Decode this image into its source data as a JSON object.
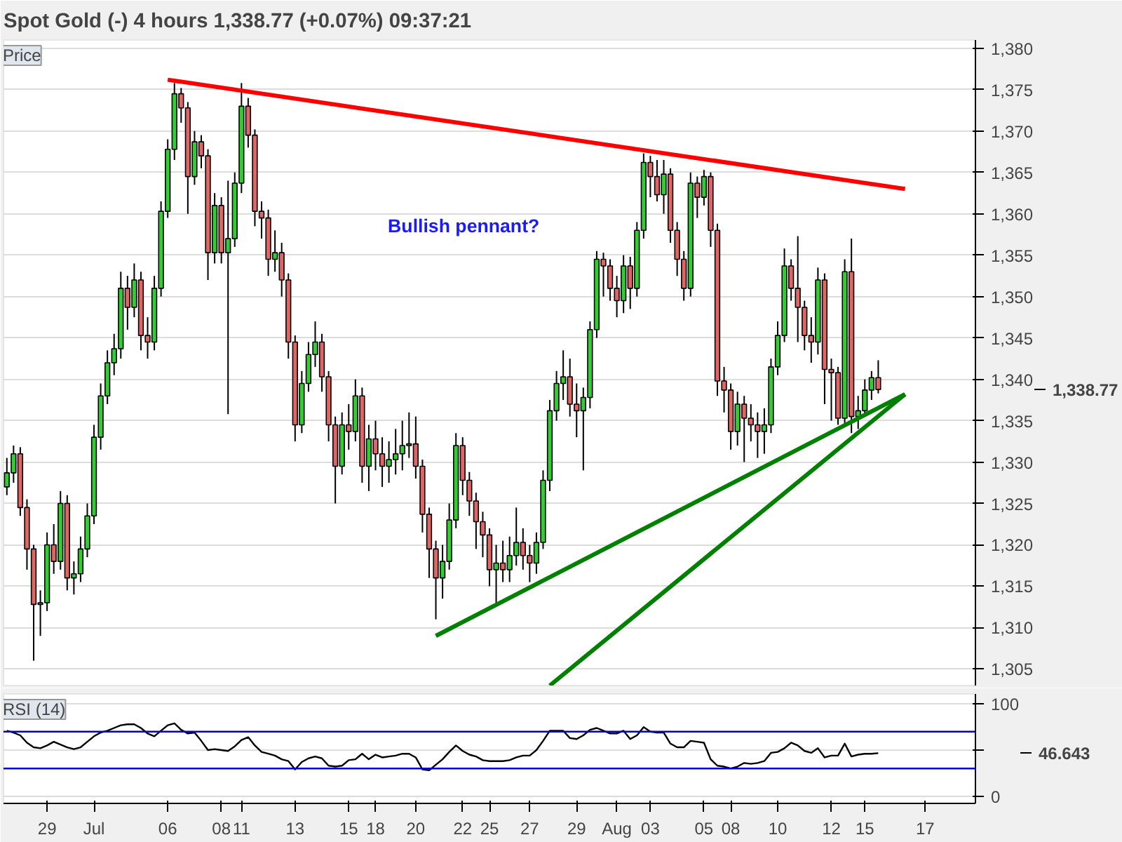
{
  "chart_data": [
    {
      "type": "candlestick",
      "title": "Spot Gold (-)   4 hours   1,338.77 (+0.07%)   09:37:21",
      "ylabel": "Price",
      "annotations": [
        "Bullish pennant?",
        "1,338.77"
      ],
      "tick_labels": "y",
      "ylim": [
        1303,
        1381
      ],
      "yticks": [
        {
          "value": 1305,
          "label": "1,305"
        },
        {
          "value": 1310,
          "label": "1,310"
        },
        {
          "value": 1315,
          "label": "1,315"
        },
        {
          "value": 1320,
          "label": "1,320"
        },
        {
          "value": 1325,
          "label": "1,325"
        },
        {
          "value": 1330,
          "label": "1,330"
        },
        {
          "value": 1335,
          "label": "1,335"
        },
        {
          "value": 1340,
          "label": "1,340"
        },
        {
          "value": 1345,
          "label": "1,345"
        },
        {
          "value": 1350,
          "label": "1,350"
        },
        {
          "value": 1355,
          "label": "1,355"
        },
        {
          "value": 1360,
          "label": "1,360"
        },
        {
          "value": 1365,
          "label": "1,365"
        },
        {
          "value": 1370,
          "label": "1,370"
        },
        {
          "value": 1375,
          "label": "1,375"
        },
        {
          "value": 1380,
          "label": "1,380"
        }
      ],
      "grid": "y",
      "ohlc": [
        [
          1327,
          1330.5,
          1326,
          1328.7
        ],
        [
          1328.7,
          1332,
          1327.5,
          1331
        ],
        [
          1331,
          1331.8,
          1323.5,
          1324.5
        ],
        [
          1324.5,
          1325.5,
          1317,
          1319.5
        ],
        [
          1319.5,
          1320,
          1306,
          1312.8
        ],
        [
          1312.8,
          1314.5,
          1309,
          1313
        ],
        [
          1313,
          1321.5,
          1312,
          1320
        ],
        [
          1320,
          1322.5,
          1316.5,
          1318
        ],
        [
          1318,
          1326.5,
          1317,
          1325
        ],
        [
          1325,
          1326,
          1314.5,
          1316
        ],
        [
          1316,
          1318,
          1314,
          1316.5
        ],
        [
          1316.5,
          1321,
          1315.5,
          1319.5
        ],
        [
          1319.5,
          1325,
          1318.5,
          1323.5
        ],
        [
          1323.5,
          1334.5,
          1322.5,
          1333
        ],
        [
          1333,
          1339.5,
          1331.5,
          1338
        ],
        [
          1338,
          1343.5,
          1337,
          1342
        ],
        [
          1342,
          1345.5,
          1340.5,
          1343.7
        ],
        [
          1343.7,
          1353,
          1342.5,
          1351
        ],
        [
          1351,
          1352.5,
          1346,
          1348.7
        ],
        [
          1348.7,
          1354,
          1347.5,
          1352
        ],
        [
          1352,
          1353,
          1343.5,
          1345.3
        ],
        [
          1345.3,
          1347.5,
          1342.5,
          1344.5
        ],
        [
          1344.5,
          1352.5,
          1343.5,
          1351
        ],
        [
          1351,
          1361.5,
          1350,
          1360.3
        ],
        [
          1360.3,
          1369,
          1359.5,
          1367.8
        ],
        [
          1367.8,
          1375.8,
          1366.5,
          1374.5
        ],
        [
          1374.5,
          1375.2,
          1371,
          1372.8
        ],
        [
          1372.8,
          1373.5,
          1360,
          1364.5
        ],
        [
          1364.5,
          1370,
          1363.5,
          1368.7
        ],
        [
          1368.7,
          1369.5,
          1365.5,
          1367
        ],
        [
          1367,
          1367.8,
          1352,
          1355.3
        ],
        [
          1355.3,
          1362.5,
          1354,
          1361
        ],
        [
          1361,
          1362,
          1354,
          1355.3
        ],
        [
          1355.3,
          1364,
          1335.8,
          1357
        ],
        [
          1357,
          1365,
          1356,
          1363.7
        ],
        [
          1363.7,
          1375.8,
          1362.5,
          1373
        ],
        [
          1373,
          1374,
          1368,
          1369.5
        ],
        [
          1369.5,
          1370.2,
          1358.5,
          1360.3
        ],
        [
          1360.3,
          1361.5,
          1357,
          1359.5
        ],
        [
          1359.5,
          1360.5,
          1352.5,
          1354.5
        ],
        [
          1354.5,
          1358,
          1353,
          1355.3
        ],
        [
          1355.3,
          1356.5,
          1350,
          1352
        ],
        [
          1352,
          1352.8,
          1342.5,
          1344.5
        ],
        [
          1344.5,
          1345.3,
          1332.5,
          1334.5
        ],
        [
          1334.5,
          1341,
          1333.5,
          1339.5
        ],
        [
          1339.5,
          1344.5,
          1338.5,
          1343
        ],
        [
          1343,
          1347,
          1341.5,
          1344.5
        ],
        [
          1344.5,
          1345.5,
          1338.5,
          1340.3
        ],
        [
          1340.3,
          1341,
          1332.5,
          1334.5
        ],
        [
          1334.5,
          1335.5,
          1325,
          1329.5
        ],
        [
          1329.5,
          1336,
          1328.5,
          1334.5
        ],
        [
          1334.5,
          1337,
          1331.5,
          1333.7
        ],
        [
          1333.7,
          1340,
          1332.5,
          1338
        ],
        [
          1338,
          1339,
          1327.5,
          1329.5
        ],
        [
          1329.5,
          1334.5,
          1326.5,
          1332.8
        ],
        [
          1332.8,
          1335,
          1329,
          1331
        ],
        [
          1331,
          1333,
          1327,
          1329.5
        ],
        [
          1329.5,
          1332.5,
          1327.5,
          1330.3
        ],
        [
          1330.3,
          1334,
          1328.5,
          1331
        ],
        [
          1331,
          1335,
          1329,
          1332
        ],
        [
          1332,
          1336,
          1330.5,
          1332.2
        ],
        [
          1332.2,
          1335.5,
          1328,
          1329.5
        ],
        [
          1329.5,
          1330.3,
          1321.5,
          1323.7
        ],
        [
          1323.7,
          1324.5,
          1316,
          1319.5
        ],
        [
          1319.5,
          1320.5,
          1311,
          1316
        ],
        [
          1316,
          1320,
          1313.5,
          1318
        ],
        [
          1318,
          1325,
          1317,
          1323
        ],
        [
          1323,
          1333.5,
          1322,
          1332
        ],
        [
          1332,
          1333,
          1326,
          1327.8
        ],
        [
          1327.8,
          1328.8,
          1323.5,
          1325.3
        ],
        [
          1325.3,
          1326.3,
          1319.5,
          1322.8
        ],
        [
          1322.8,
          1324,
          1318.5,
          1321.2
        ],
        [
          1321.2,
          1322,
          1315,
          1317
        ],
        [
          1317,
          1320,
          1313,
          1317.8
        ],
        [
          1317.8,
          1320.5,
          1315.5,
          1317
        ],
        [
          1317,
          1321,
          1315.5,
          1318.7
        ],
        [
          1318.7,
          1324.5,
          1317.5,
          1320.3
        ],
        [
          1320.3,
          1322,
          1317,
          1318.7
        ],
        [
          1318.7,
          1320,
          1315.5,
          1317.8
        ],
        [
          1317.8,
          1321.5,
          1316.5,
          1320.3
        ],
        [
          1320.3,
          1329,
          1319.5,
          1327.8
        ],
        [
          1327.8,
          1337.5,
          1326.5,
          1336.2
        ],
        [
          1336.2,
          1341,
          1335,
          1339.5
        ],
        [
          1339.5,
          1343.5,
          1337.5,
          1340.3
        ],
        [
          1340.3,
          1342.5,
          1335.5,
          1337
        ],
        [
          1337,
          1339.5,
          1333,
          1336.2
        ],
        [
          1336.2,
          1339,
          1329,
          1337.8
        ],
        [
          1337.8,
          1347,
          1336.5,
          1346
        ],
        [
          1346,
          1355.5,
          1345,
          1354.5
        ],
        [
          1354.5,
          1355.3,
          1350,
          1353.7
        ],
        [
          1353.7,
          1354.5,
          1349.5,
          1351
        ],
        [
          1351,
          1352.5,
          1347.5,
          1349.5
        ],
        [
          1349.5,
          1355,
          1348,
          1353.7
        ],
        [
          1353.7,
          1354.8,
          1348.5,
          1351
        ],
        [
          1351,
          1359,
          1350,
          1358
        ],
        [
          1358,
          1367.3,
          1357,
          1366.2
        ],
        [
          1366.2,
          1367,
          1362,
          1364.5
        ],
        [
          1364.5,
          1366.5,
          1361.5,
          1362.3
        ],
        [
          1362.3,
          1366.5,
          1360,
          1364.8
        ],
        [
          1364.8,
          1365.5,
          1356.5,
          1358
        ],
        [
          1358,
          1359,
          1352.5,
          1354.5
        ],
        [
          1354.5,
          1355.5,
          1349.5,
          1351
        ],
        [
          1351,
          1365,
          1350,
          1363.7
        ],
        [
          1363.7,
          1364.5,
          1359.5,
          1362
        ],
        [
          1362,
          1365.3,
          1361,
          1364.5
        ],
        [
          1364.5,
          1365,
          1356,
          1358
        ],
        [
          1358,
          1358.8,
          1338,
          1339.8
        ],
        [
          1339.8,
          1341.5,
          1336,
          1338.7
        ],
        [
          1338.7,
          1339.5,
          1331.5,
          1333.7
        ],
        [
          1333.7,
          1338.5,
          1332,
          1337
        ],
        [
          1337,
          1338,
          1330,
          1335.3
        ],
        [
          1335.3,
          1337,
          1332.5,
          1334.5
        ],
        [
          1334.5,
          1336,
          1330.5,
          1333.7
        ],
        [
          1333.7,
          1336.5,
          1331,
          1334.5
        ],
        [
          1334.5,
          1342.5,
          1333.5,
          1341.5
        ],
        [
          1341.5,
          1347,
          1340.5,
          1345.3
        ],
        [
          1345.3,
          1355.8,
          1344.5,
          1353.7
        ],
        [
          1353.7,
          1354.5,
          1349.5,
          1351
        ],
        [
          1351,
          1357.3,
          1344.5,
          1348.7
        ],
        [
          1348.7,
          1349.5,
          1343.5,
          1345.3
        ],
        [
          1345.3,
          1347.5,
          1342,
          1344.5
        ],
        [
          1344.5,
          1353.5,
          1343,
          1352
        ],
        [
          1352,
          1352.8,
          1337,
          1341.2
        ],
        [
          1341.2,
          1342.5,
          1335,
          1340.8
        ],
        [
          1340.8,
          1341.5,
          1334.5,
          1335.3
        ],
        [
          1335.3,
          1354.5,
          1334.5,
          1353
        ],
        [
          1353,
          1357,
          1333.5,
          1335.5
        ],
        [
          1335.5,
          1338,
          1334,
          1336.2
        ],
        [
          1336.2,
          1340,
          1335.5,
          1338.7
        ],
        [
          1338.7,
          1341,
          1337.5,
          1340.2
        ],
        [
          1340.2,
          1342.3,
          1338.3,
          1338.77
        ],
        null,
        null,
        null,
        null,
        null,
        null,
        null,
        null,
        null,
        null,
        null,
        null,
        null,
        null
      ],
      "series": [
        {
          "type": "line",
          "color": "#ff0000",
          "values": [
            null,
            null,
            null,
            null,
            null,
            null,
            null,
            null,
            null,
            null,
            null,
            null,
            null,
            null,
            null,
            null,
            null,
            null,
            null,
            null,
            null,
            null,
            null,
            null,
            1376.2,
            null,
            null,
            null,
            null,
            null,
            null,
            null,
            null,
            null,
            null,
            null,
            null,
            null,
            null,
            null,
            null,
            null,
            null,
            null,
            null,
            null,
            null,
            null,
            null,
            null,
            null,
            null,
            null,
            null,
            null,
            null,
            null,
            null,
            null,
            null,
            null,
            null,
            null,
            null,
            null,
            null,
            null,
            null,
            null,
            null,
            null,
            null,
            null,
            null,
            null,
            null,
            null,
            null,
            null,
            null,
            null,
            null,
            null,
            null,
            null,
            null,
            null,
            null,
            null,
            null,
            null,
            null,
            null,
            null,
            null,
            null,
            null,
            null,
            null,
            null,
            null,
            null,
            null,
            null,
            null,
            null,
            null,
            null,
            null,
            null,
            null,
            null,
            null,
            null,
            null,
            null,
            null,
            null,
            null,
            null,
            null,
            null,
            null,
            null,
            null,
            null,
            null,
            null,
            null,
            null,
            null,
            null,
            null,
            null,
            1363,
            null,
            null,
            null,
            null,
            null,
            null,
            null,
            null,
            null,
            null
          ]
        },
        {
          "type": "line",
          "color": "#008000",
          "values": [
            null,
            null,
            null,
            null,
            null,
            null,
            null,
            null,
            null,
            null,
            null,
            null,
            null,
            null,
            null,
            null,
            null,
            null,
            null,
            null,
            null,
            null,
            null,
            null,
            null,
            null,
            null,
            null,
            null,
            null,
            null,
            null,
            null,
            null,
            null,
            null,
            null,
            null,
            null,
            null,
            null,
            null,
            null,
            null,
            null,
            null,
            null,
            null,
            null,
            null,
            null,
            null,
            null,
            null,
            null,
            null,
            null,
            null,
            null,
            null,
            null,
            null,
            null,
            null,
            1309,
            null,
            null,
            null,
            null,
            null,
            null,
            null,
            null,
            null,
            null,
            null,
            null,
            null,
            null,
            null,
            null,
            null,
            null,
            null,
            null,
            null,
            null,
            null,
            null,
            null,
            null,
            null,
            null,
            null,
            null,
            null,
            null,
            null,
            null,
            null,
            null,
            null,
            null,
            null,
            null,
            null,
            null,
            null,
            null,
            null,
            null,
            null,
            null,
            null,
            null,
            null,
            null,
            null,
            null,
            null,
            null,
            null,
            null,
            null,
            null,
            null,
            null,
            null,
            null,
            null,
            null,
            null,
            null,
            null,
            1338.2,
            null,
            null,
            null,
            null,
            null,
            null,
            null,
            null,
            null,
            null
          ]
        },
        {
          "type": "line",
          "color": "#008000",
          "values": [
            null,
            null,
            null,
            null,
            null,
            null,
            null,
            null,
            null,
            null,
            null,
            null,
            null,
            null,
            null,
            null,
            null,
            null,
            null,
            null,
            null,
            null,
            null,
            null,
            null,
            null,
            null,
            null,
            null,
            null,
            null,
            null,
            null,
            null,
            null,
            null,
            null,
            null,
            null,
            null,
            null,
            null,
            null,
            null,
            null,
            null,
            null,
            null,
            null,
            null,
            null,
            null,
            null,
            null,
            null,
            null,
            null,
            null,
            null,
            null,
            null,
            null,
            null,
            null,
            null,
            null,
            null,
            null,
            null,
            null,
            null,
            null,
            null,
            null,
            null,
            null,
            null,
            null,
            null,
            null,
            null,
            1303,
            null,
            null,
            null,
            null,
            null,
            null,
            null,
            null,
            null,
            null,
            null,
            null,
            null,
            null,
            null,
            null,
            null,
            null,
            null,
            null,
            null,
            null,
            null,
            null,
            null,
            null,
            null,
            null,
            null,
            null,
            null,
            null,
            null,
            null,
            null,
            null,
            null,
            null,
            null,
            null,
            null,
            null,
            null,
            null,
            null,
            null,
            null,
            null,
            null,
            null,
            null,
            null,
            1338.2,
            null,
            null,
            null,
            null,
            null,
            null,
            null,
            null,
            null,
            null
          ]
        }
      ]
    },
    {
      "type": "line",
      "ylabel": "RSI (14)",
      "grid": "y",
      "marker": "none",
      "line_style": "solid",
      "annotations": [
        "46.643"
      ],
      "categories": [
        null,
        null,
        null,
        null,
        null,
        null,
        "29",
        null,
        null,
        null,
        null,
        null,
        null,
        "Jul",
        null,
        null,
        null,
        null,
        null,
        null,
        null,
        null,
        null,
        null,
        "06",
        null,
        null,
        null,
        null,
        null,
        null,
        null,
        "08",
        null,
        null,
        "11",
        null,
        null,
        null,
        null,
        null,
        null,
        null,
        "13",
        null,
        null,
        null,
        null,
        null,
        null,
        null,
        "15",
        null,
        null,
        null,
        "18",
        null,
        null,
        null,
        null,
        null,
        "20",
        null,
        null,
        null,
        null,
        null,
        null,
        "22",
        null,
        null,
        null,
        "25",
        null,
        null,
        null,
        null,
        null,
        "27",
        null,
        null,
        null,
        null,
        null,
        null,
        "29",
        null,
        null,
        null,
        null,
        null,
        "Aug",
        null,
        null,
        null,
        null,
        "03",
        null,
        null,
        null,
        null,
        null,
        null,
        null,
        "05",
        null,
        null,
        null,
        "08",
        null,
        null,
        null,
        null,
        null,
        null,
        "10",
        null,
        null,
        null,
        null,
        null,
        null,
        null,
        "12",
        null,
        null,
        null,
        null,
        "15",
        null,
        null,
        null,
        null,
        null,
        null,
        null,
        null,
        "17",
        null,
        null,
        null,
        null,
        null,
        null,
        null
      ],
      "ylim": [
        -8,
        111
      ],
      "yticks": [
        0,
        {
          "value": 50,
          "label": null
        },
        100
      ],
      "ref_lines": [
        {
          "axis": "y",
          "value": 70,
          "color": "#0000cc"
        },
        {
          "axis": "y",
          "value": 30,
          "color": "#0000cc"
        }
      ],
      "series": [
        {
          "color": "#000000",
          "values": [
            71,
            69,
            66,
            58,
            53,
            52,
            55,
            59,
            56,
            53,
            51,
            53,
            59,
            65,
            69,
            71,
            74,
            77,
            78,
            78,
            74,
            68,
            65,
            71,
            77,
            79,
            72,
            68,
            69,
            60,
            50,
            51,
            50,
            49,
            54,
            61,
            64,
            55,
            48,
            46,
            44,
            40,
            38,
            29,
            37,
            41,
            43,
            41,
            33,
            32,
            33,
            39,
            40,
            46,
            40,
            45,
            42,
            43,
            44,
            46,
            46,
            42,
            29,
            28,
            34,
            40,
            48,
            55,
            49,
            45,
            43,
            39,
            38,
            38,
            38,
            39,
            42,
            44,
            44,
            50,
            60,
            71,
            71,
            71,
            63,
            62,
            66,
            72,
            74,
            71,
            68,
            68,
            71,
            62,
            66,
            75,
            70,
            69,
            69,
            57,
            53,
            53,
            60,
            59,
            58,
            40,
            33,
            32,
            30,
            32,
            36,
            35,
            36,
            38,
            47,
            48,
            52,
            58,
            55,
            49,
            47,
            52,
            42,
            44,
            44,
            57,
            43,
            45,
            46,
            46,
            46.643,
            null,
            null,
            null,
            null,
            null,
            null,
            null,
            null,
            null,
            null,
            null,
            null,
            null,
            null
          ]
        }
      ]
    }
  ]
}
